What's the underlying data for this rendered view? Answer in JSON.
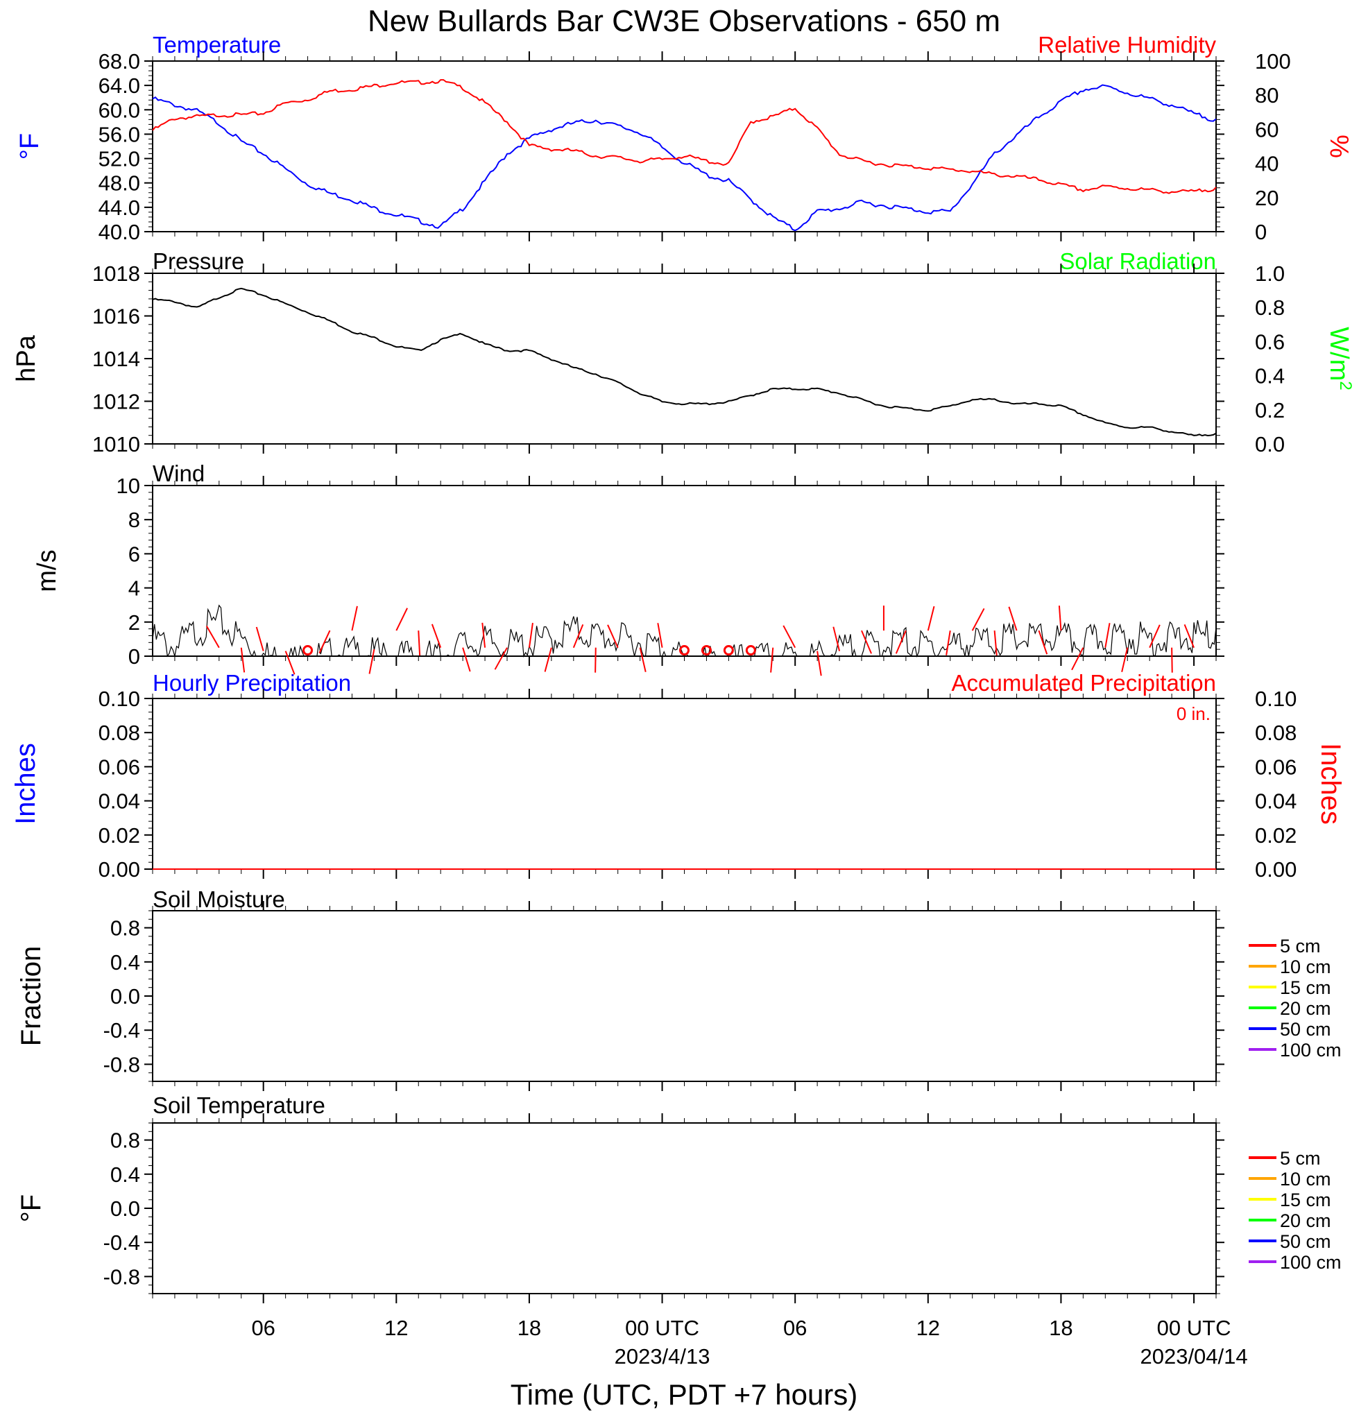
{
  "title": "New Bullards Bar CW3E Observations - 650 m",
  "xaxis": {
    "label": "Time (UTC, PDT +7 hours)",
    "ticks": [
      {
        "hour": 6,
        "label": "06",
        "sub": ""
      },
      {
        "hour": 12,
        "label": "12",
        "sub": ""
      },
      {
        "hour": 18,
        "label": "18",
        "sub": ""
      },
      {
        "hour": 24,
        "label": "00 UTC",
        "sub": "2023/4/13"
      },
      {
        "hour": 30,
        "label": "06",
        "sub": ""
      },
      {
        "hour": 36,
        "label": "12",
        "sub": ""
      },
      {
        "hour": 42,
        "label": "18",
        "sub": ""
      },
      {
        "hour": 48,
        "label": "00 UTC",
        "sub": "2023/04/14"
      }
    ],
    "range_hours": [
      1,
      49
    ]
  },
  "panels": {
    "temp_rh": {
      "left_label": "Temperature",
      "right_label": "Relative Humidity",
      "left_unit": "°F",
      "right_unit": "%",
      "left_ticks": [
        "40.0",
        "44.0",
        "48.0",
        "52.0",
        "56.0",
        "60.0",
        "64.0",
        "68.0"
      ],
      "right_ticks": [
        "0",
        "20",
        "40",
        "60",
        "80",
        "100"
      ],
      "left_color": "#0000ff",
      "right_color": "#ff0000"
    },
    "pressure": {
      "left_label": "Pressure",
      "right_label": "Solar Radiation",
      "left_unit": "hPa",
      "right_unit": "W/m",
      "right_unit_sup": "2",
      "left_ticks": [
        "1010",
        "1012",
        "1014",
        "1016",
        "1018"
      ],
      "right_ticks": [
        "0.0",
        "0.2",
        "0.4",
        "0.6",
        "0.8",
        "1.0"
      ],
      "right_color": "#00ff00"
    },
    "wind": {
      "left_label": "Wind",
      "left_unit": "m/s",
      "left_ticks": [
        "0",
        "2",
        "4",
        "6",
        "8",
        "10"
      ]
    },
    "precip": {
      "left_label": "Hourly Precipitation",
      "right_label": "Accumulated Precipitation",
      "accum_text": "0 in.",
      "left_unit": "Inches",
      "right_unit": "Inches",
      "left_ticks": [
        "0.00",
        "0.02",
        "0.04",
        "0.06",
        "0.08",
        "0.10"
      ],
      "right_ticks": [
        "0.00",
        "0.02",
        "0.04",
        "0.06",
        "0.08",
        "0.10"
      ],
      "left_color": "#0000ff",
      "right_color": "#ff0000"
    },
    "soil_moisture": {
      "left_label": "Soil Moisture",
      "left_unit": "Fraction",
      "left_ticks": [
        "-0.8",
        "-0.4",
        "0.0",
        "0.4",
        "0.8"
      ],
      "legend": [
        {
          "label": "5 cm",
          "color": "#ff0000"
        },
        {
          "label": "10 cm",
          "color": "#ffa500"
        },
        {
          "label": "15 cm",
          "color": "#ffff00"
        },
        {
          "label": "20 cm",
          "color": "#00ff00"
        },
        {
          "label": "50 cm",
          "color": "#0000ff"
        },
        {
          "label": "100 cm",
          "color": "#a020f0"
        }
      ]
    },
    "soil_temp": {
      "left_label": "Soil Temperature",
      "left_unit": "°F",
      "left_ticks": [
        "-0.8",
        "-0.4",
        "0.0",
        "0.4",
        "0.8"
      ],
      "legend": [
        {
          "label": "5 cm",
          "color": "#ff0000"
        },
        {
          "label": "10 cm",
          "color": "#ffa500"
        },
        {
          "label": "15 cm",
          "color": "#ffff00"
        },
        {
          "label": "20 cm",
          "color": "#00ff00"
        },
        {
          "label": "50 cm",
          "color": "#0000ff"
        },
        {
          "label": "100 cm",
          "color": "#a020f0"
        }
      ]
    }
  },
  "chart_data": [
    {
      "type": "line",
      "title": "Temperature",
      "xlabel": "Time (UTC, PDT +7 hours)",
      "ylabel": "°F",
      "ylim": [
        40,
        68
      ],
      "series": [
        {
          "name": "Temperature",
          "color": "#0000ff",
          "x": [
            1,
            2,
            3,
            4,
            5,
            6,
            7,
            8,
            9,
            10,
            11,
            12,
            13,
            14,
            15,
            16,
            17,
            18,
            19,
            20,
            21,
            22,
            23,
            24,
            25,
            26,
            27,
            28,
            29,
            30,
            31,
            32,
            33,
            34,
            35,
            36,
            37,
            38,
            39,
            40,
            41,
            42,
            43,
            44,
            45,
            46,
            47,
            48,
            49
          ],
          "values": [
            62,
            61,
            60,
            58,
            55,
            53,
            50.5,
            48,
            46.5,
            45.5,
            44,
            43,
            42,
            41,
            44,
            48.5,
            53,
            55.5,
            57,
            58,
            58.5,
            57.5,
            56.5,
            54,
            51.5,
            49.5,
            48.5,
            45.5,
            42.5,
            40.5,
            43.5,
            44,
            45,
            44.5,
            44,
            43.5,
            43.5,
            48,
            53,
            56,
            59,
            61.5,
            63.5,
            64,
            63,
            62,
            61,
            59.5,
            58.5
          ]
        }
      ]
    },
    {
      "type": "line",
      "title": "Relative Humidity",
      "ylabel": "%",
      "ylim": [
        0,
        100
      ],
      "series": [
        {
          "name": "Relative Humidity",
          "color": "#ff0000",
          "x": [
            1,
            2,
            3,
            4,
            5,
            6,
            7,
            8,
            9,
            10,
            11,
            12,
            13,
            14,
            15,
            16,
            17,
            18,
            19,
            20,
            21,
            22,
            23,
            24,
            25,
            26,
            27,
            28,
            29,
            30,
            31,
            32,
            33,
            34,
            35,
            36,
            37,
            38,
            39,
            40,
            41,
            42,
            43,
            44,
            45,
            46,
            47,
            48,
            49
          ],
          "values": [
            60,
            67,
            68,
            69,
            69,
            70,
            76,
            78,
            83,
            84,
            86,
            88,
            88,
            89,
            85,
            76,
            65,
            51,
            49,
            48,
            45,
            44,
            42,
            43,
            45,
            42,
            40,
            65,
            68,
            73,
            61,
            46,
            42,
            40,
            39,
            38,
            37,
            36,
            34,
            33,
            31,
            28,
            25,
            27,
            26,
            25,
            24,
            24,
            26
          ]
        }
      ]
    },
    {
      "type": "line",
      "title": "Pressure",
      "ylabel": "hPa",
      "ylim": [
        1010,
        1018
      ],
      "series": [
        {
          "name": "Pressure",
          "color": "#000000",
          "x": [
            1,
            2,
            3,
            4,
            5,
            6,
            7,
            8,
            9,
            10,
            11,
            12,
            13,
            14,
            15,
            16,
            17,
            18,
            19,
            20,
            21,
            22,
            23,
            24,
            25,
            26,
            27,
            28,
            29,
            30,
            31,
            32,
            33,
            34,
            35,
            36,
            37,
            38,
            39,
            40,
            41,
            42,
            43,
            44,
            45,
            46,
            47,
            48,
            49
          ],
          "values": [
            1016.8,
            1016.7,
            1016.4,
            1016.9,
            1017.3,
            1017.0,
            1016.6,
            1016.2,
            1015.8,
            1015.3,
            1015.0,
            1014.6,
            1014.4,
            1014.9,
            1015.2,
            1014.7,
            1014.4,
            1014.4,
            1014.0,
            1013.6,
            1013.3,
            1012.9,
            1012.4,
            1012.0,
            1011.9,
            1011.9,
            1012.0,
            1012.3,
            1012.6,
            1012.6,
            1012.6,
            1012.4,
            1012.1,
            1011.8,
            1011.7,
            1011.6,
            1011.8,
            1012.1,
            1012.1,
            1011.9,
            1011.9,
            1011.8,
            1011.4,
            1011.0,
            1010.8,
            1010.8,
            1010.6,
            1010.4,
            1010.5
          ]
        }
      ]
    },
    {
      "type": "line",
      "title": "Wind",
      "ylabel": "m/s",
      "ylim": [
        0,
        10
      ],
      "series": [
        {
          "name": "Wind speed",
          "color": "#000000",
          "x": [
            1,
            2,
            3,
            4,
            5,
            6,
            7,
            8,
            9,
            10,
            11,
            12,
            13,
            14,
            15,
            16,
            17,
            18,
            19,
            20,
            21,
            22,
            23,
            24,
            25,
            26,
            27,
            28,
            29,
            30,
            31,
            32,
            33,
            34,
            35,
            36,
            37,
            38,
            39,
            40,
            41,
            42,
            43,
            44,
            45,
            46,
            47,
            48,
            49
          ],
          "values": [
            1.5,
            1.0,
            2.0,
            2.5,
            1.5,
            0.5,
            0.4,
            0.3,
            0.6,
            0.7,
            0.6,
            0.5,
            0.6,
            0.4,
            1.2,
            1.3,
            1.1,
            1.2,
            1.5,
            2.0,
            1.7,
            1.5,
            1.3,
            1.0,
            0.3,
            0.2,
            0.2,
            0.3,
            0.4,
            0.5,
            0.5,
            0.8,
            1.0,
            1.2,
            1.3,
            1.0,
            1.1,
            1.3,
            1.4,
            1.5,
            1.6,
            1.5,
            1.3,
            1.5,
            1.6,
            1.5,
            1.5,
            1.6,
            1.7
          ]
        },
        {
          "name": "Wind direction barbs",
          "color": "#ff0000",
          "x": [
            4,
            5,
            6,
            7,
            8,
            9,
            10,
            11,
            12,
            13,
            14,
            15,
            16,
            17,
            18,
            19,
            20,
            21,
            22,
            23,
            24,
            25,
            26,
            27,
            28,
            29,
            30,
            31,
            32,
            33,
            34,
            35,
            36,
            37,
            38,
            39,
            40,
            41,
            42,
            43,
            44,
            45,
            46,
            47,
            48
          ],
          "values": [
            0.5,
            0.5,
            0.3,
            0.3,
            0.1,
            1.5,
            1.5,
            0.4,
            1.5,
            1.5,
            0.5,
            0.5,
            0.5,
            0.5,
            0.5,
            0.5,
            0.5,
            0.5,
            0.5,
            0.5,
            0.5,
            0.1,
            0.1,
            0.1,
            0.1,
            0.5,
            0.5,
            0.3,
            0.3,
            1.5,
            1.5,
            1.5,
            1.5,
            1.5,
            1.5,
            1.5,
            1.5,
            1.5,
            1.5,
            0.5,
            0.5,
            0.5,
            0.5,
            0.5,
            0.5
          ]
        }
      ]
    },
    {
      "type": "line",
      "title": "Hourly Precipitation",
      "ylabel": "Inches",
      "ylim": [
        0,
        0.1
      ],
      "series": [
        {
          "name": "Hourly Precipitation",
          "color": "#0000ff",
          "x": [
            1,
            49
          ],
          "values": [
            0,
            0
          ]
        },
        {
          "name": "Accumulated Precipitation",
          "color": "#ff0000",
          "x": [
            1,
            49
          ],
          "values": [
            0,
            0
          ]
        }
      ]
    },
    {
      "type": "line",
      "title": "Soil Moisture",
      "ylabel": "Fraction",
      "ylim": [
        -1,
        1
      ],
      "series": []
    },
    {
      "type": "line",
      "title": "Soil Temperature",
      "ylabel": "°F",
      "ylim": [
        -1,
        1
      ],
      "series": []
    }
  ]
}
